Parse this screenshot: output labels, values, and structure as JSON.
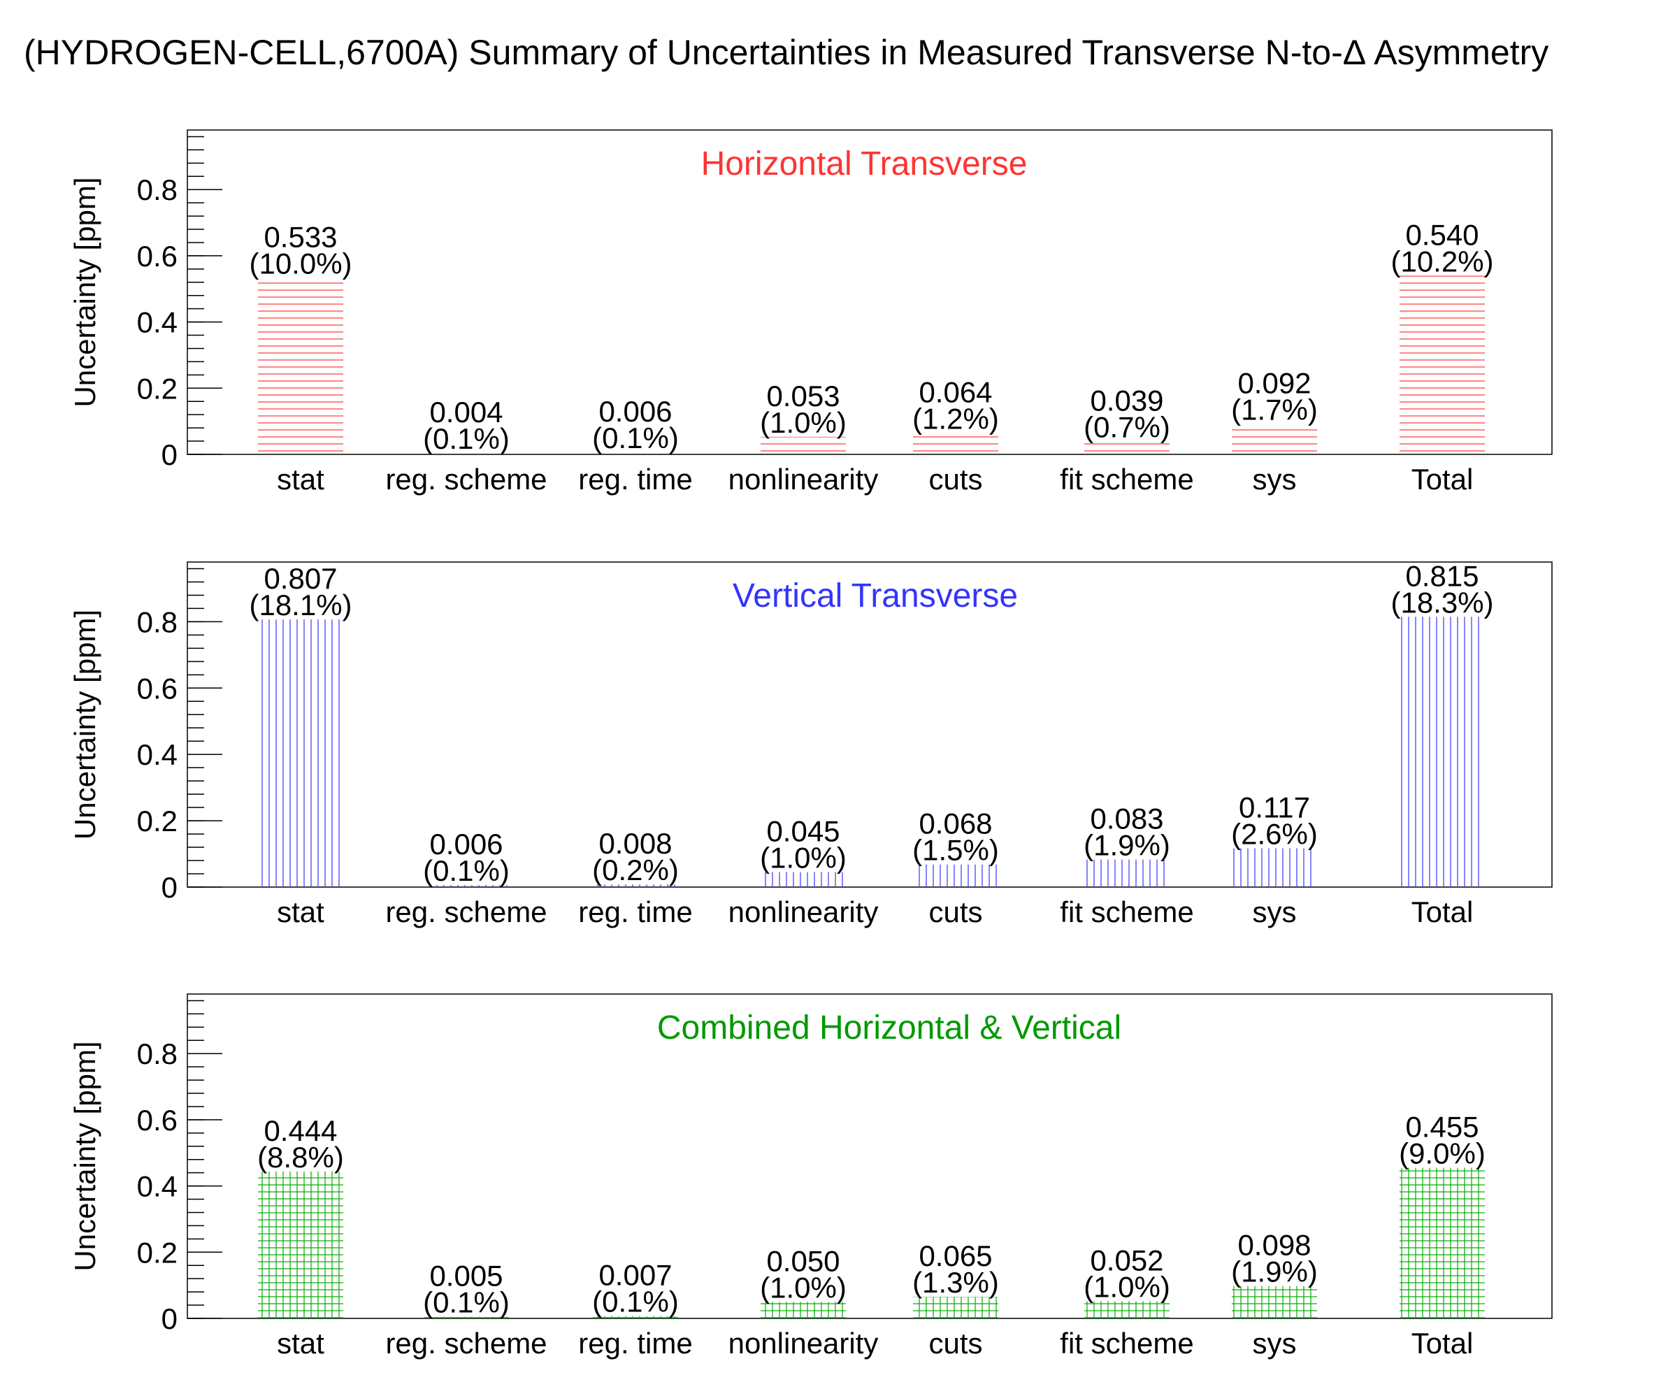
{
  "page_title": "(HYDROGEN-CELL,6700A) Summary of Uncertainties in Measured Transverse N-to-Δ Asymmetry",
  "chart_data": [
    {
      "type": "bar",
      "title": "Horizontal Transverse",
      "title_color": "#ff3333",
      "bar_color": "#ff3333",
      "pattern": "horizontal-hatch",
      "ylabel": "Uncertainty [ppm]",
      "ylim": [
        0,
        0.98
      ],
      "yticks": [
        0,
        0.2,
        0.4,
        0.6,
        0.8
      ],
      "ytick_labels": [
        "0",
        "0.2",
        "0.4",
        "0.6",
        "0.8"
      ],
      "categories": [
        "stat",
        "reg. scheme",
        "reg. time",
        "nonlinearity",
        "cuts",
        "fit scheme",
        "sys",
        "Total"
      ],
      "values": [
        0.533,
        0.004,
        0.006,
        0.053,
        0.064,
        0.039,
        0.092,
        0.54
      ],
      "value_labels": [
        "0.533",
        "0.004",
        "0.006",
        "0.053",
        "0.064",
        "0.039",
        "0.092",
        "0.540"
      ],
      "percent_labels": [
        "(10.0%)",
        "(0.1%)",
        "(0.1%)",
        "(1.0%)",
        "(1.2%)",
        "(0.7%)",
        "(1.7%)",
        "(10.2%)"
      ]
    },
    {
      "type": "bar",
      "title": "Vertical Transverse",
      "title_color": "#3333ff",
      "bar_color": "#3333ff",
      "pattern": "vertical-hatch",
      "ylabel": "Uncertainty [ppm]",
      "ylim": [
        0,
        0.98
      ],
      "yticks": [
        0,
        0.2,
        0.4,
        0.6,
        0.8
      ],
      "ytick_labels": [
        "0",
        "0.2",
        "0.4",
        "0.6",
        "0.8"
      ],
      "categories": [
        "stat",
        "reg. scheme",
        "reg. time",
        "nonlinearity",
        "cuts",
        "fit scheme",
        "sys",
        "Total"
      ],
      "values": [
        0.807,
        0.006,
        0.008,
        0.045,
        0.068,
        0.083,
        0.117,
        0.815
      ],
      "value_labels": [
        "0.807",
        "0.006",
        "0.008",
        "0.045",
        "0.068",
        "0.083",
        "0.117",
        "0.815"
      ],
      "percent_labels": [
        "(18.1%)",
        "(0.1%)",
        "(0.2%)",
        "(1.0%)",
        "(1.5%)",
        "(1.9%)",
        "(2.6%)",
        "(18.3%)"
      ]
    },
    {
      "type": "bar",
      "title": "Combined Horizontal & Vertical",
      "title_color": "#009900",
      "bar_color": "#00aa00",
      "pattern": "grid-hatch",
      "ylabel": "Uncertainty [ppm]",
      "ylim": [
        0,
        0.98
      ],
      "yticks": [
        0,
        0.2,
        0.4,
        0.6,
        0.8
      ],
      "ytick_labels": [
        "0",
        "0.2",
        "0.4",
        "0.6",
        "0.8"
      ],
      "categories": [
        "stat",
        "reg. scheme",
        "reg. time",
        "nonlinearity",
        "cuts",
        "fit scheme",
        "sys",
        "Total"
      ],
      "values": [
        0.444,
        0.005,
        0.007,
        0.05,
        0.065,
        0.052,
        0.098,
        0.455
      ],
      "value_labels": [
        "0.444",
        "0.005",
        "0.007",
        "0.050",
        "0.065",
        "0.052",
        "0.098",
        "0.455"
      ],
      "percent_labels": [
        "(8.8%)",
        "(0.1%)",
        "(0.1%)",
        "(1.0%)",
        "(1.3%)",
        "(1.0%)",
        "(1.9%)",
        "(9.0%)"
      ]
    }
  ]
}
